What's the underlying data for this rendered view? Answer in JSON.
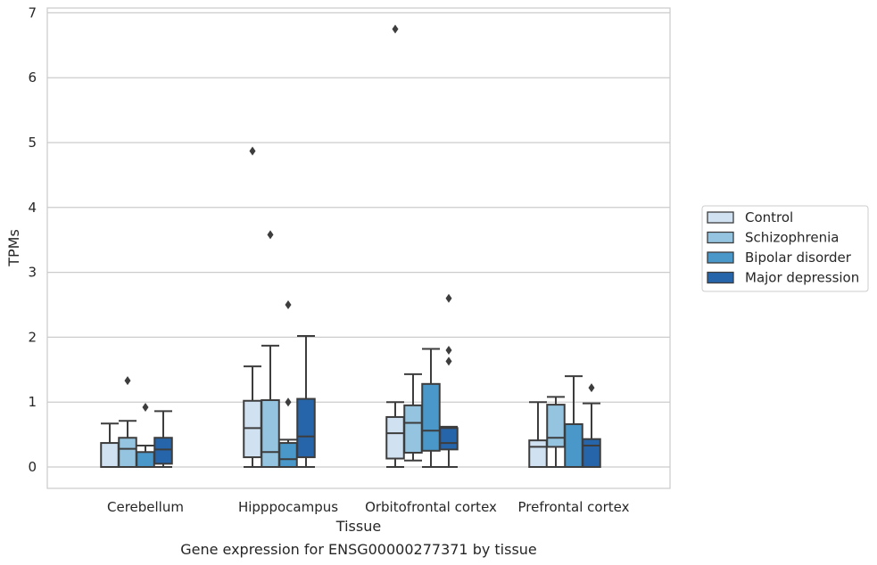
{
  "colors": {
    "grid": "#cccccc",
    "frame": "#cccccc",
    "stroke": "#3d3d3d",
    "background": "#ffffff"
  },
  "chart_data": {
    "type": "box",
    "xlabel": "Tissue",
    "ylabel": "TPMs",
    "caption": "Gene expression for ENSG00000277371 by tissue",
    "ylim": [
      -0.33,
      7.1
    ],
    "yticks": [
      0,
      1,
      2,
      3,
      4,
      5,
      6,
      7
    ],
    "grid": "horizontal",
    "legend_position": "right",
    "categories": [
      "Cerebellum",
      "Hipppocampus",
      "Orbitofrontal cortex",
      "Prefrontal cortex"
    ],
    "series": [
      {
        "name": "Control",
        "color": "#d0e1f2",
        "boxes": [
          {
            "min": 0,
            "q1": 0,
            "median": 0,
            "q3": 0.37,
            "max": 0.67,
            "outliers": []
          },
          {
            "min": 0,
            "q1": 0.15,
            "median": 0.6,
            "q3": 1.02,
            "max": 1.55,
            "outliers": [
              4.87
            ]
          },
          {
            "min": 0,
            "q1": 0.13,
            "median": 0.52,
            "q3": 0.77,
            "max": 1.0,
            "outliers": [
              6.75
            ]
          },
          {
            "min": 0,
            "q1": 0,
            "median": 0.31,
            "q3": 0.41,
            "max": 1.0,
            "outliers": []
          }
        ]
      },
      {
        "name": "Schizophrenia",
        "color": "#94c4df",
        "boxes": [
          {
            "min": 0,
            "q1": 0,
            "median": 0.28,
            "q3": 0.45,
            "max": 0.71,
            "outliers": [
              1.33
            ]
          },
          {
            "min": 0,
            "q1": 0,
            "median": 0.23,
            "q3": 1.03,
            "max": 1.87,
            "outliers": [
              3.58
            ]
          },
          {
            "min": 0.1,
            "q1": 0.22,
            "median": 0.68,
            "q3": 0.95,
            "max": 1.43,
            "outliers": []
          },
          {
            "min": 0,
            "q1": 0.31,
            "median": 0.45,
            "q3": 0.96,
            "max": 1.08,
            "outliers": []
          }
        ]
      },
      {
        "name": "Bipolar disorder",
        "color": "#4a98c9",
        "boxes": [
          {
            "min": 0,
            "q1": 0,
            "median": 0,
            "q3": 0.23,
            "max": 0.33,
            "outliers": [
              0.92
            ]
          },
          {
            "min": 0,
            "q1": 0,
            "median": 0.12,
            "q3": 0.37,
            "max": 0.42,
            "outliers": [
              1.0,
              2.5
            ]
          },
          {
            "min": 0,
            "q1": 0.25,
            "median": 0.56,
            "q3": 1.28,
            "max": 1.82,
            "outliers": []
          },
          {
            "min": 0,
            "q1": 0,
            "median": 0,
            "q3": 0.66,
            "max": 1.4,
            "outliers": []
          }
        ]
      },
      {
        "name": "Major depression",
        "color": "#2765ab",
        "boxes": [
          {
            "min": 0,
            "q1": 0.05,
            "median": 0.27,
            "q3": 0.45,
            "max": 0.86,
            "outliers": []
          },
          {
            "min": 0,
            "q1": 0.15,
            "median": 0.47,
            "q3": 1.05,
            "max": 2.02,
            "outliers": []
          },
          {
            "min": 0,
            "q1": 0.27,
            "median": 0.37,
            "q3": 0.6,
            "max": 0.62,
            "outliers": [
              1.63,
              1.8,
              2.6
            ]
          },
          {
            "min": 0,
            "q1": 0,
            "median": 0.33,
            "q3": 0.43,
            "max": 0.98,
            "outliers": [
              1.22
            ]
          }
        ]
      }
    ]
  }
}
